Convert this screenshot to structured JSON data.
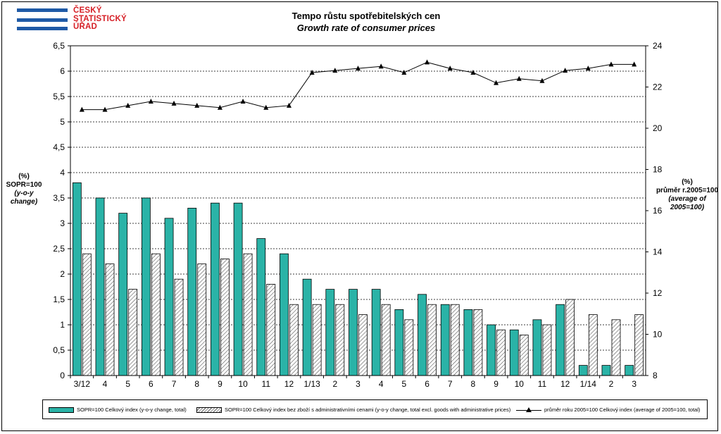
{
  "header": {
    "logo_lines": [
      "ČESKÝ",
      "STATISTICKÝ",
      "ÚŘAD"
    ],
    "title_cz": "Tempo růstu spotřebitelských cen",
    "title_en": "Growth rate of consumer prices"
  },
  "axes": {
    "left_label_unit": "(%)",
    "left_label_main": "SOPR=100",
    "left_label_sub": "(y-o-y change)",
    "right_label_unit": "(%)",
    "right_label_main": "průměr r.2005=100",
    "right_label_sub": "(average of 2005=100)"
  },
  "legend": {
    "item1": "SOPR=100 Celkový index (y-o-y change, total)",
    "item2": "SOPR=100 Celkový index bez zboží s administrativními cenami (y-o-y change, total excl. goods with administrative prices)",
    "item3": "průměr roku 2005=100 Celkový index (average of 2005=100, total)"
  },
  "colors": {
    "bar_total": "#2ab3a7",
    "bar_excl_stroke": "#555555",
    "line": "#000000"
  },
  "chart_data": {
    "type": "bar",
    "categories": [
      "3/12",
      "4",
      "5",
      "6",
      "7",
      "8",
      "9",
      "10",
      "11",
      "12",
      "1/13",
      "2",
      "3",
      "4",
      "5",
      "6",
      "7",
      "8",
      "9",
      "10",
      "11",
      "12",
      "1/14",
      "2",
      "3"
    ],
    "series": [
      {
        "name": "SOPR=100 Celkový index (y-o-y change, total)",
        "axis": "left",
        "values": [
          3.8,
          3.5,
          3.2,
          3.5,
          3.1,
          3.3,
          3.4,
          3.4,
          2.7,
          2.4,
          1.9,
          1.7,
          1.7,
          1.7,
          1.3,
          1.6,
          1.4,
          1.3,
          1.0,
          0.9,
          1.1,
          1.4,
          0.2,
          0.2,
          0.2
        ]
      },
      {
        "name": "SOPR=100 Celkový index bez zboží s administrativními cenami (y-o-y change, total excl. goods with administrative prices)",
        "axis": "left",
        "values": [
          2.4,
          2.2,
          1.7,
          2.4,
          1.9,
          2.2,
          2.3,
          2.4,
          1.8,
          1.4,
          1.4,
          1.4,
          1.2,
          1.4,
          1.1,
          1.4,
          1.4,
          1.3,
          0.9,
          0.8,
          1.0,
          1.5,
          1.2,
          1.1,
          1.2
        ]
      },
      {
        "name": "průměr roku 2005=100 Celkový index (average of 2005=100, total)",
        "axis": "right",
        "chart_type": "line",
        "values": [
          20.9,
          20.9,
          21.1,
          21.3,
          21.2,
          21.1,
          21.0,
          21.3,
          21.0,
          21.1,
          22.7,
          22.8,
          22.9,
          23.0,
          22.7,
          23.2,
          22.9,
          22.7,
          22.2,
          22.4,
          22.3,
          22.8,
          22.9,
          23.1,
          23.1
        ]
      }
    ],
    "ylim_left": [
      0,
      6.5
    ],
    "ylim_right": [
      8,
      24
    ],
    "yticks_left": [
      "0",
      "0,5",
      "1",
      "1,5",
      "2",
      "2,5",
      "3",
      "3,5",
      "4",
      "4,5",
      "5",
      "5,5",
      "6",
      "6,5"
    ],
    "yticks_right": [
      "8",
      "10",
      "12",
      "14",
      "16",
      "18",
      "20",
      "22",
      "24"
    ],
    "grid": true
  }
}
